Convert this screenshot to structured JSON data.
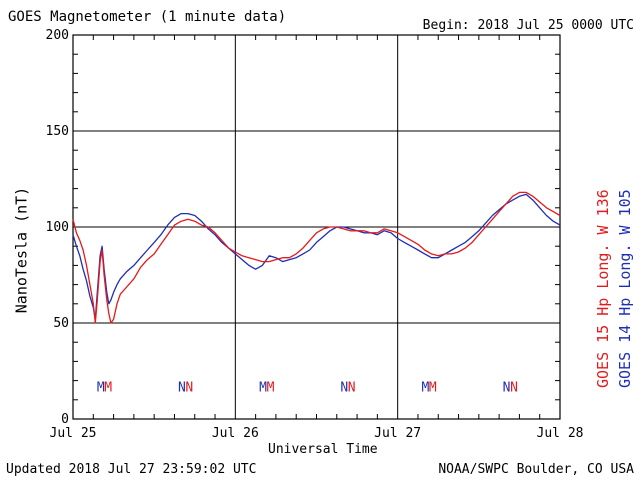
{
  "header": {
    "title": "GOES Magnetometer (1 minute data)",
    "begin": "Begin:  2018 Jul 25 0000 UTC"
  },
  "footer": {
    "updated": "Updated 2018 Jul 27 23:59:02 UTC",
    "credit": "NOAA/SWPC Boulder, CO USA"
  },
  "chart_data": {
    "type": "line",
    "title": "GOES Magnetometer (1 minute data)",
    "xlabel": "Universal Time",
    "ylabel": "NanoTesla (nT)",
    "xlim": [
      0,
      72
    ],
    "ylim": [
      0,
      200
    ],
    "yticks": [
      0,
      50,
      100,
      150,
      200
    ],
    "xticks": [
      {
        "hour": 0,
        "label": "Jul 25"
      },
      {
        "hour": 24,
        "label": "Jul 26"
      },
      {
        "hour": 48,
        "label": "Jul 27"
      },
      {
        "hour": 72,
        "label": "Jul 28"
      }
    ],
    "grid": true,
    "series": [
      {
        "name": "GOES 15 Hp  Long. W 136",
        "color": "#e41a1c",
        "points": [
          [
            0,
            104
          ],
          [
            0.5,
            97
          ],
          [
            1,
            93
          ],
          [
            1.5,
            88
          ],
          [
            2,
            80
          ],
          [
            2.5,
            70
          ],
          [
            3,
            60
          ],
          [
            3.3,
            50
          ],
          [
            3.6,
            62
          ],
          [
            4,
            82
          ],
          [
            4.3,
            88
          ],
          [
            4.6,
            75
          ],
          [
            5,
            62
          ],
          [
            5.3,
            55
          ],
          [
            5.6,
            50
          ],
          [
            6,
            52
          ],
          [
            6.5,
            60
          ],
          [
            7,
            65
          ],
          [
            8,
            69
          ],
          [
            9,
            73
          ],
          [
            10,
            79
          ],
          [
            11,
            83
          ],
          [
            12,
            86
          ],
          [
            13,
            91
          ],
          [
            14,
            96
          ],
          [
            15,
            101
          ],
          [
            16,
            103
          ],
          [
            17,
            104
          ],
          [
            18,
            103
          ],
          [
            19,
            101
          ],
          [
            20,
            100
          ],
          [
            21,
            97
          ],
          [
            22,
            93
          ],
          [
            23,
            89
          ],
          [
            24,
            87
          ],
          [
            25,
            85
          ],
          [
            26,
            84
          ],
          [
            27,
            83
          ],
          [
            28,
            82
          ],
          [
            29,
            82
          ],
          [
            30,
            83
          ],
          [
            31,
            84
          ],
          [
            32,
            84
          ],
          [
            33,
            86
          ],
          [
            34,
            89
          ],
          [
            35,
            93
          ],
          [
            36,
            97
          ],
          [
            37,
            99
          ],
          [
            38,
            100
          ],
          [
            39,
            100
          ],
          [
            40,
            99
          ],
          [
            41,
            98
          ],
          [
            42,
            98
          ],
          [
            43,
            98
          ],
          [
            44,
            97
          ],
          [
            45,
            97
          ],
          [
            46,
            99
          ],
          [
            47,
            98
          ],
          [
            48,
            97
          ],
          [
            49,
            95
          ],
          [
            50,
            93
          ],
          [
            51,
            91
          ],
          [
            52,
            88
          ],
          [
            53,
            86
          ],
          [
            54,
            85
          ],
          [
            55,
            86
          ],
          [
            56,
            86
          ],
          [
            57,
            87
          ],
          [
            58,
            89
          ],
          [
            59,
            92
          ],
          [
            60,
            96
          ],
          [
            61,
            100
          ],
          [
            62,
            104
          ],
          [
            63,
            108
          ],
          [
            64,
            112
          ],
          [
            65,
            116
          ],
          [
            66,
            118
          ],
          [
            67,
            118
          ],
          [
            68,
            116
          ],
          [
            69,
            113
          ],
          [
            70,
            110
          ],
          [
            71,
            108
          ],
          [
            72,
            106
          ]
        ]
      },
      {
        "name": "GOES 14 Hp  Long. W 105",
        "color": "#1f2fb4",
        "points": [
          [
            0,
            96
          ],
          [
            0.5,
            90
          ],
          [
            1,
            85
          ],
          [
            1.5,
            78
          ],
          [
            2,
            72
          ],
          [
            2.5,
            64
          ],
          [
            3,
            58
          ],
          [
            3.3,
            52
          ],
          [
            3.6,
            66
          ],
          [
            4,
            85
          ],
          [
            4.3,
            90
          ],
          [
            4.6,
            78
          ],
          [
            5,
            66
          ],
          [
            5.3,
            60
          ],
          [
            5.6,
            62
          ],
          [
            6,
            66
          ],
          [
            6.5,
            70
          ],
          [
            7,
            73
          ],
          [
            8,
            77
          ],
          [
            9,
            80
          ],
          [
            10,
            84
          ],
          [
            11,
            88
          ],
          [
            12,
            92
          ],
          [
            13,
            96
          ],
          [
            14,
            101
          ],
          [
            15,
            105
          ],
          [
            16,
            107
          ],
          [
            17,
            107
          ],
          [
            18,
            106
          ],
          [
            19,
            103
          ],
          [
            20,
            99
          ],
          [
            21,
            96
          ],
          [
            22,
            92
          ],
          [
            23,
            89
          ],
          [
            24,
            86
          ],
          [
            25,
            83
          ],
          [
            26,
            80
          ],
          [
            27,
            78
          ],
          [
            28,
            80
          ],
          [
            29,
            85
          ],
          [
            30,
            84
          ],
          [
            31,
            82
          ],
          [
            32,
            83
          ],
          [
            33,
            84
          ],
          [
            34,
            86
          ],
          [
            35,
            88
          ],
          [
            36,
            92
          ],
          [
            37,
            95
          ],
          [
            38,
            98
          ],
          [
            39,
            100
          ],
          [
            40,
            100
          ],
          [
            41,
            99
          ],
          [
            42,
            98
          ],
          [
            43,
            97
          ],
          [
            44,
            97
          ],
          [
            45,
            96
          ],
          [
            46,
            98
          ],
          [
            47,
            97
          ],
          [
            48,
            94
          ],
          [
            49,
            92
          ],
          [
            50,
            90
          ],
          [
            51,
            88
          ],
          [
            52,
            86
          ],
          [
            53,
            84
          ],
          [
            54,
            84
          ],
          [
            55,
            86
          ],
          [
            56,
            88
          ],
          [
            57,
            90
          ],
          [
            58,
            92
          ],
          [
            59,
            95
          ],
          [
            60,
            98
          ],
          [
            61,
            102
          ],
          [
            62,
            106
          ],
          [
            63,
            109
          ],
          [
            64,
            112
          ],
          [
            65,
            114
          ],
          [
            66,
            116
          ],
          [
            67,
            117
          ],
          [
            68,
            114
          ],
          [
            69,
            110
          ],
          [
            70,
            106
          ],
          [
            71,
            103
          ],
          [
            72,
            101
          ]
        ]
      }
    ],
    "markers": {
      "value": 17,
      "items": [
        {
          "hour": 4.1,
          "label": "M",
          "color": "#1f2fb4"
        },
        {
          "hour": 5.2,
          "label": "M",
          "color": "#e41a1c"
        },
        {
          "hour": 16.1,
          "label": "N",
          "color": "#1f2fb4"
        },
        {
          "hour": 17.2,
          "label": "N",
          "color": "#e41a1c"
        },
        {
          "hour": 28.1,
          "label": "M",
          "color": "#1f2fb4"
        },
        {
          "hour": 29.2,
          "label": "M",
          "color": "#e41a1c"
        },
        {
          "hour": 40.1,
          "label": "N",
          "color": "#1f2fb4"
        },
        {
          "hour": 41.2,
          "label": "N",
          "color": "#e41a1c"
        },
        {
          "hour": 52.1,
          "label": "M",
          "color": "#1f2fb4"
        },
        {
          "hour": 53.2,
          "label": "M",
          "color": "#e41a1c"
        },
        {
          "hour": 64.1,
          "label": "N",
          "color": "#1f2fb4"
        },
        {
          "hour": 65.2,
          "label": "N",
          "color": "#e41a1c"
        }
      ]
    },
    "legend": [
      "GOES 15 Hp  Long. W 136",
      "GOES 14 Hp  Long. W 105"
    ],
    "legend_position": "right-vertical"
  }
}
